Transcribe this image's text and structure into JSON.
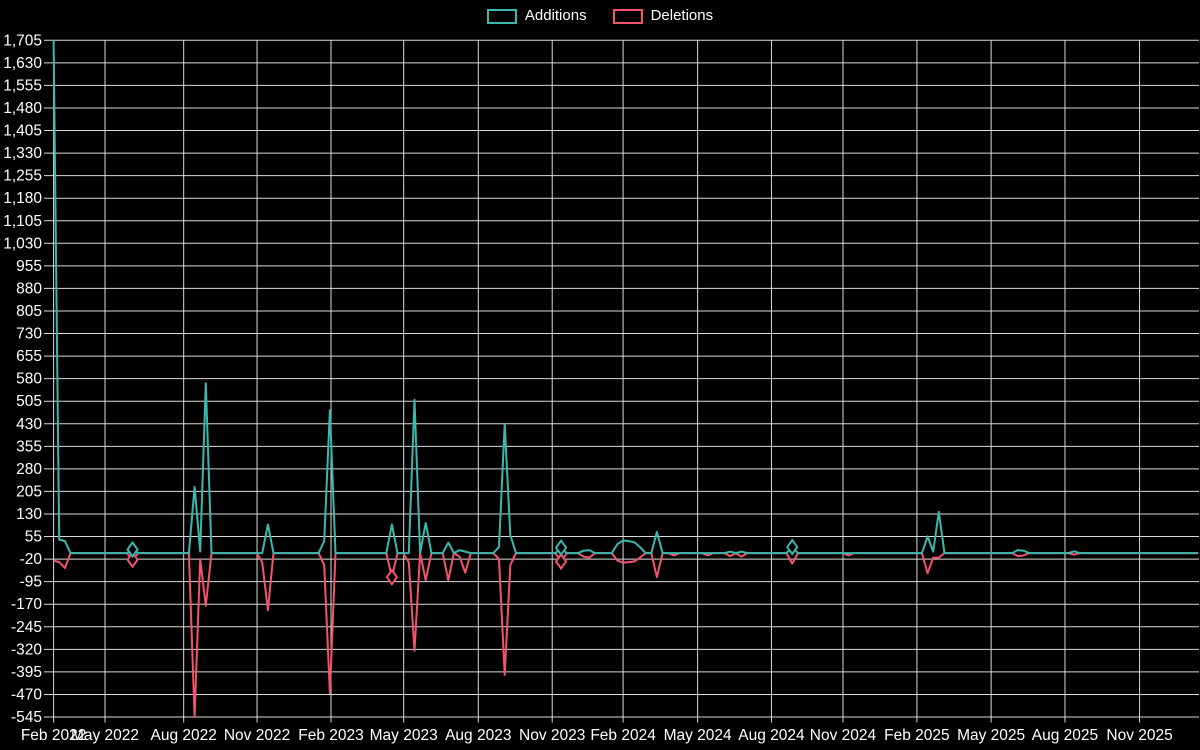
{
  "page": {
    "background": "#000000"
  },
  "legend": {
    "items": [
      {
        "label": "Additions",
        "color": "#3ab8ae"
      },
      {
        "label": "Deletions",
        "color": "#f2546e"
      }
    ]
  },
  "chart_data": {
    "type": "line",
    "title": "",
    "xlabel": "",
    "ylabel": "",
    "x_unit": "week",
    "weeks_total": 204,
    "grid": true,
    "legend_position": "top-center",
    "background": "#000000",
    "grid_color": "#d9d9d9",
    "text_color": "#ffffff",
    "ylim": [
      -545,
      1705
    ],
    "y_tick_step": 75,
    "y_tick_labels": [
      "1,705",
      "1,630",
      "1,555",
      "1,480",
      "1,405",
      "1,330",
      "1,255",
      "1,180",
      "1,105",
      "1,030",
      "955",
      "880",
      "805",
      "730",
      "655",
      "580",
      "505",
      "430",
      "355",
      "280",
      "205",
      "130",
      "55",
      "-20",
      "-95",
      "-170",
      "-245",
      "-320",
      "-395",
      "-470",
      "-545"
    ],
    "x_ticks": [
      {
        "label": "Feb 2022",
        "week": 0
      },
      {
        "label": "May 2022",
        "week": 9.12
      },
      {
        "label": "Aug 2022",
        "week": 23.07
      },
      {
        "label": "Nov 2022",
        "week": 36.08
      },
      {
        "label": "Feb 2023",
        "week": 49.2
      },
      {
        "label": "May 2023",
        "week": 62.09
      },
      {
        "label": "Aug 2023",
        "week": 75.32
      },
      {
        "label": "Nov 2023",
        "week": 88.43
      },
      {
        "label": "Feb 2024",
        "week": 101.0
      },
      {
        "label": "May 2024",
        "week": 114.22
      },
      {
        "label": "Aug 2024",
        "week": 127.31
      },
      {
        "label": "Nov 2024",
        "week": 140.0
      },
      {
        "label": "Feb 2025",
        "week": 153.11
      },
      {
        "label": "May 2025",
        "week": 166.27
      },
      {
        "label": "Aug 2025",
        "week": 179.37
      },
      {
        "label": "Nov 2025",
        "week": 192.6
      }
    ],
    "series": [
      {
        "name": "Additions",
        "color": "#3ab8ae",
        "value_key": "additions",
        "marker_weeks": [
          14,
          90,
          131
        ]
      },
      {
        "name": "Deletions",
        "color": "#f2546e",
        "value_key": "deletions",
        "marker_weeks": [
          14,
          60,
          90
        ]
      }
    ],
    "baseline_value": 0,
    "events": [
      {
        "week": 0,
        "additions": 1705,
        "deletions": -25
      },
      {
        "week": 1,
        "additions": 45,
        "deletions": -30
      },
      {
        "week": 2,
        "additions": 40,
        "deletions": -50
      },
      {
        "week": 14,
        "additions": 12,
        "deletions": -22
      },
      {
        "week": 25,
        "additions": 220,
        "deletions": -545
      },
      {
        "week": 26,
        "additions": 5,
        "deletions": -20
      },
      {
        "week": 27,
        "additions": 565,
        "deletions": -175
      },
      {
        "week": 37,
        "additions": 0,
        "deletions": -30
      },
      {
        "week": 38,
        "additions": 95,
        "deletions": -190
      },
      {
        "week": 48,
        "additions": 40,
        "deletions": -40
      },
      {
        "week": 49,
        "additions": 475,
        "deletions": -465
      },
      {
        "week": 60,
        "additions": 95,
        "deletions": -80
      },
      {
        "week": 63,
        "additions": 0,
        "deletions": -30
      },
      {
        "week": 64,
        "additions": 510,
        "deletions": -325
      },
      {
        "week": 66,
        "additions": 100,
        "deletions": -90
      },
      {
        "week": 70,
        "additions": 35,
        "deletions": -90
      },
      {
        "week": 72,
        "additions": 10,
        "deletions": -12
      },
      {
        "week": 73,
        "additions": 5,
        "deletions": -65
      },
      {
        "week": 79,
        "additions": 20,
        "deletions": -20
      },
      {
        "week": 80,
        "additions": 430,
        "deletions": -405
      },
      {
        "week": 81,
        "additions": 60,
        "deletions": -40
      },
      {
        "week": 90,
        "additions": 18,
        "deletions": -28
      },
      {
        "week": 94,
        "additions": 8,
        "deletions": -12
      },
      {
        "week": 95,
        "additions": 10,
        "deletions": -15
      },
      {
        "week": 100,
        "additions": 30,
        "deletions": -25
      },
      {
        "week": 101,
        "additions": 42,
        "deletions": -32
      },
      {
        "week": 102,
        "additions": 40,
        "deletions": -30
      },
      {
        "week": 103,
        "additions": 36,
        "deletions": -28
      },
      {
        "week": 104,
        "additions": 20,
        "deletions": -15
      },
      {
        "week": 107,
        "additions": 70,
        "deletions": -80
      },
      {
        "week": 110,
        "additions": 0,
        "deletions": -8
      },
      {
        "week": 116,
        "additions": 0,
        "deletions": -8
      },
      {
        "week": 120,
        "additions": 5,
        "deletions": -10
      },
      {
        "week": 122,
        "additions": 5,
        "deletions": -12
      },
      {
        "week": 131,
        "additions": 20,
        "deletions": -35
      },
      {
        "week": 141,
        "additions": 0,
        "deletions": -8
      },
      {
        "week": 155,
        "additions": 55,
        "deletions": -67
      },
      {
        "week": 156,
        "additions": 5,
        "deletions": -15
      },
      {
        "week": 157,
        "additions": 137,
        "deletions": -15
      },
      {
        "week": 171,
        "additions": 10,
        "deletions": -10
      },
      {
        "week": 172,
        "additions": 8,
        "deletions": -8
      },
      {
        "week": 181,
        "additions": 6,
        "deletions": -5
      }
    ]
  }
}
